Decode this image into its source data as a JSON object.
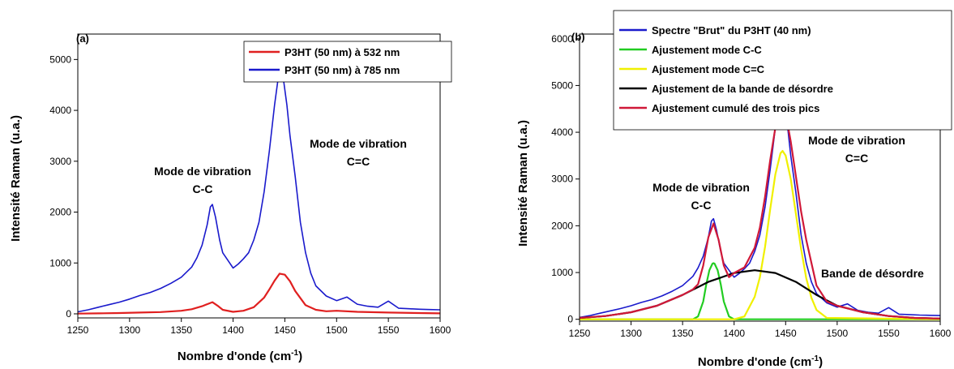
{
  "chart_data": [
    {
      "type": "line",
      "panel_label": "(a)",
      "xlabel": "Nombre d'onde (cm-1)",
      "xlabel_main": "Nombre d'onde (cm",
      "xlabel_sup": "-1",
      "xlabel_close": ")",
      "ylabel": "Intensité Raman (u.a.)",
      "xlim": [
        1250,
        1600
      ],
      "ylim": [
        -80,
        5500
      ],
      "xticks": [
        1250,
        1300,
        1350,
        1400,
        1450,
        1500,
        1550,
        1600
      ],
      "yticks": [
        0,
        1000,
        2000,
        3000,
        4000,
        5000
      ],
      "legend_position": "top-right",
      "series": [
        {
          "name": "P3HT (50 nm) à 532 nm",
          "color": "#e02020",
          "x": [
            1250,
            1270,
            1290,
            1310,
            1330,
            1350,
            1360,
            1370,
            1375,
            1380,
            1385,
            1390,
            1400,
            1410,
            1420,
            1430,
            1435,
            1440,
            1445,
            1450,
            1455,
            1460,
            1470,
            1480,
            1490,
            1500,
            1520,
            1550,
            1600
          ],
          "y": [
            5,
            10,
            15,
            25,
            35,
            60,
            90,
            150,
            190,
            230,
            160,
            80,
            40,
            60,
            130,
            320,
            480,
            650,
            790,
            770,
            640,
            450,
            170,
            80,
            50,
            60,
            40,
            25,
            10
          ]
        },
        {
          "name": "P3HT (50 nm) à 785 nm",
          "color": "#1a1acc",
          "x": [
            1250,
            1260,
            1270,
            1280,
            1290,
            1300,
            1310,
            1320,
            1330,
            1340,
            1350,
            1360,
            1365,
            1370,
            1375,
            1378,
            1380,
            1383,
            1387,
            1390,
            1395,
            1400,
            1405,
            1410,
            1415,
            1420,
            1425,
            1430,
            1435,
            1440,
            1443,
            1446,
            1449,
            1452,
            1455,
            1460,
            1465,
            1470,
            1475,
            1480,
            1490,
            1500,
            1510,
            1520,
            1530,
            1540,
            1550,
            1560,
            1570,
            1580,
            1590,
            1600
          ],
          "y": [
            40,
            80,
            130,
            180,
            230,
            290,
            360,
            420,
            500,
            600,
            720,
            920,
            1100,
            1350,
            1750,
            2100,
            2150,
            1900,
            1450,
            1200,
            1050,
            900,
            980,
            1080,
            1200,
            1450,
            1800,
            2400,
            3200,
            4100,
            4550,
            4700,
            4550,
            4100,
            3500,
            2700,
            1800,
            1200,
            800,
            550,
            350,
            260,
            330,
            190,
            150,
            130,
            250,
            110,
            100,
            90,
            85,
            80
          ]
        }
      ],
      "annotations": [
        {
          "line1": "Mode de vibration",
          "line2": "C-C"
        },
        {
          "line1": "Mode de vibration",
          "line2": "C=C"
        }
      ]
    },
    {
      "type": "line",
      "panel_label": "(b)",
      "xlabel": "Nombre d'onde (cm-1)",
      "xlabel_main": "Nombre d'onde (cm",
      "xlabel_sup": "-1",
      "xlabel_close": ")",
      "ylabel": "Intensité Raman (u.a.)",
      "xlim": [
        1250,
        1600
      ],
      "ylim": [
        -40,
        6100
      ],
      "xticks": [
        1250,
        1300,
        1350,
        1400,
        1450,
        1500,
        1550,
        1600
      ],
      "yticks": [
        0,
        1000,
        2000,
        3000,
        4000,
        5000,
        6000
      ],
      "legend_position": "top-right",
      "series": [
        {
          "name": "Spectre \"Brut\" du P3HT (40 nm)",
          "color": "#1a1acc",
          "x": [
            1250,
            1260,
            1270,
            1280,
            1290,
            1300,
            1310,
            1320,
            1330,
            1340,
            1350,
            1360,
            1365,
            1370,
            1375,
            1378,
            1380,
            1383,
            1387,
            1390,
            1395,
            1400,
            1405,
            1410,
            1415,
            1420,
            1425,
            1430,
            1435,
            1440,
            1443,
            1446,
            1449,
            1452,
            1455,
            1460,
            1465,
            1470,
            1475,
            1480,
            1490,
            1500,
            1510,
            1520,
            1530,
            1540,
            1550,
            1560,
            1570,
            1580,
            1590,
            1600
          ],
          "y": [
            40,
            80,
            130,
            180,
            230,
            290,
            360,
            420,
            500,
            600,
            720,
            920,
            1100,
            1350,
            1750,
            2100,
            2150,
            1900,
            1450,
            1200,
            1050,
            900,
            980,
            1080,
            1200,
            1450,
            1800,
            2400,
            3200,
            4100,
            4550,
            4700,
            4550,
            4100,
            3500,
            2700,
            1800,
            1200,
            800,
            550,
            350,
            260,
            330,
            190,
            150,
            130,
            250,
            110,
            100,
            90,
            85,
            80
          ]
        },
        {
          "name": "Ajustement mode C-C",
          "color": "#22cc22",
          "x": [
            1250,
            1360,
            1365,
            1370,
            1373,
            1376,
            1379,
            1380,
            1381,
            1384,
            1387,
            1390,
            1395,
            1400,
            1600
          ],
          "y": [
            0,
            0,
            60,
            380,
            750,
            1050,
            1190,
            1200,
            1190,
            1050,
            750,
            380,
            60,
            0,
            0
          ]
        },
        {
          "name": "Ajustement mode C=C",
          "color": "#f0f000",
          "x": [
            1250,
            1400,
            1410,
            1420,
            1425,
            1430,
            1435,
            1440,
            1445,
            1447,
            1450,
            1455,
            1460,
            1465,
            1470,
            1475,
            1480,
            1490,
            1600
          ],
          "y": [
            0,
            0,
            60,
            480,
            900,
            1550,
            2350,
            3100,
            3550,
            3600,
            3500,
            3000,
            2250,
            1500,
            880,
            460,
            200,
            30,
            0
          ]
        },
        {
          "name": "Ajustement de la bande de désordre",
          "color": "#000000",
          "x": [
            1250,
            1275,
            1300,
            1325,
            1350,
            1375,
            1400,
            1420,
            1440,
            1460,
            1480,
            1500,
            1525,
            1550,
            1575,
            1600
          ],
          "y": [
            30,
            70,
            150,
            290,
            520,
            800,
            990,
            1050,
            990,
            800,
            520,
            290,
            150,
            70,
            30,
            15
          ]
        },
        {
          "name": "Ajustement cumulé des trois pics",
          "color": "#d01838",
          "x": [
            1250,
            1275,
            1300,
            1325,
            1350,
            1360,
            1365,
            1370,
            1375,
            1380,
            1385,
            1390,
            1395,
            1400,
            1410,
            1420,
            1425,
            1430,
            1435,
            1440,
            1445,
            1447,
            1450,
            1455,
            1460,
            1465,
            1470,
            1480,
            1490,
            1500,
            1525,
            1550,
            1575,
            1600
          ],
          "y": [
            30,
            70,
            150,
            290,
            520,
            640,
            750,
            1150,
            1750,
            2050,
            1700,
            1150,
            900,
            990,
            1110,
            1530,
            1960,
            2620,
            3400,
            4100,
            4540,
            4500,
            4400,
            3800,
            3050,
            2300,
            1700,
            720,
            380,
            290,
            150,
            70,
            30,
            15
          ]
        }
      ],
      "annotations": [
        {
          "line1": "Mode de vibration",
          "line2": "C-C"
        },
        {
          "line1": "Mode de vibration",
          "line2": "C=C"
        },
        {
          "line1": "Bande de désordre"
        }
      ]
    }
  ]
}
